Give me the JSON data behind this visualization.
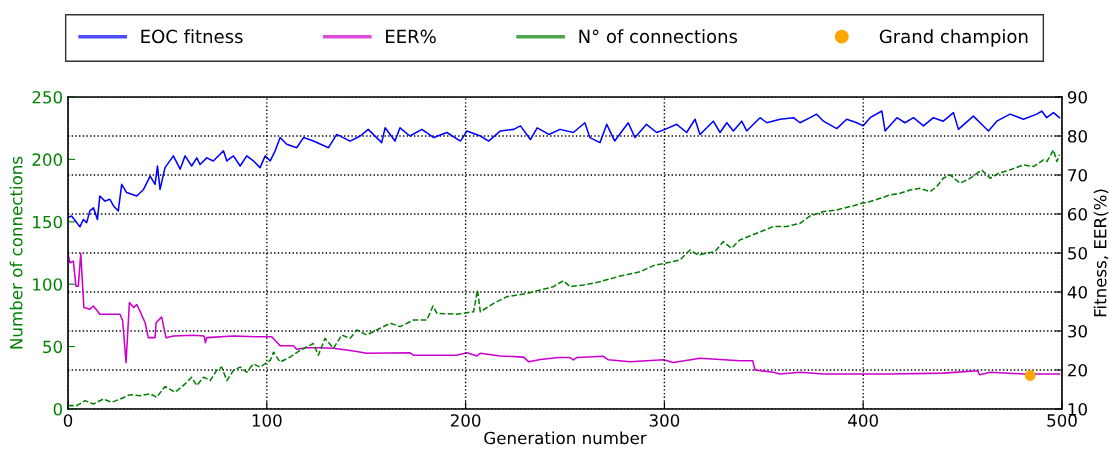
{
  "chart_data": {
    "type": "line",
    "xlabel": "Generation number",
    "ylabel": "Number of connections",
    "y2label": "Fitness, EER(%)",
    "xlim": [
      0,
      500
    ],
    "xticks": [
      0,
      100,
      200,
      300,
      400,
      500
    ],
    "ylim": [
      0,
      250
    ],
    "yticks": [
      0,
      50,
      100,
      150,
      200,
      250
    ],
    "y2lim": [
      10,
      90
    ],
    "y2ticks": [
      10,
      20,
      30,
      40,
      50,
      60,
      70,
      80,
      90
    ],
    "grid": true,
    "legend": "top",
    "series": [
      {
        "name": "EOC fitness",
        "axis": "y2",
        "color": "#0000ff",
        "line_style": "solid",
        "x": [
          0,
          1.8,
          3.5,
          6,
          7.7,
          9.4,
          11,
          12.8,
          14.8,
          16,
          18.6,
          21,
          23,
          25.3,
          27,
          29.5,
          34.6,
          38,
          41.3,
          43.8,
          45,
          46.3,
          48.8,
          53,
          56.4,
          58.9,
          62.2,
          64.8,
          66.4,
          69.8,
          73.1,
          78.2,
          79.9,
          83.2,
          86.6,
          89.9,
          93.3,
          96.6,
          99.2,
          101.7,
          104.2,
          106.7,
          110,
          115,
          118.5,
          123.5,
          131,
          135.2,
          141.9,
          147,
          151,
          157.8,
          159.5,
          164.5,
          167,
          172,
          178,
          184,
          190.6,
          197.4,
          200.7,
          207.4,
          211.6,
          217.5,
          224.2,
          227.6,
          232.6,
          236,
          241.9,
          247.5,
          254.2,
          260,
          262.5,
          267.6,
          271,
          275,
          281.8,
          285.2,
          291,
          296.1,
          300.3,
          306.2,
          311.2,
          315.4,
          317.9,
          324.6,
          328,
          331.4,
          334.7,
          338.9,
          341.4,
          348.1,
          351.5,
          358.2,
          364.9,
          368.2,
          373.3,
          376.6,
          380,
          386.7,
          391.7,
          396.8,
          400,
          403.5,
          409.4,
          411,
          417,
          421,
          425.3,
          430.3,
          435.3,
          440.3,
          445.4,
          447.9,
          455.4,
          458.8,
          463,
          467.2,
          473.9,
          480.6,
          487.3,
          489.8,
          492.3,
          495.7,
          498.7
        ],
        "values": [
          59.1,
          59.5,
          58.4,
          56.7,
          58.6,
          57.8,
          60.8,
          61.6,
          58.6,
          64.6,
          63.3,
          63.8,
          62,
          60.8,
          67.6,
          65.5,
          64.6,
          66.3,
          69.7,
          67.6,
          72.3,
          66.3,
          71.9,
          74.9,
          71.5,
          74.9,
          72.3,
          74.4,
          72.7,
          74.4,
          73.6,
          76.2,
          73.6,
          74.9,
          72.3,
          74.9,
          73.6,
          71.9,
          74.9,
          73.6,
          76.2,
          79.6,
          77.9,
          77,
          79.6,
          78.7,
          77,
          80.4,
          78.7,
          80,
          81.7,
          78.3,
          82.1,
          78.7,
          82.1,
          80,
          81.7,
          79.6,
          80.9,
          78.7,
          81.3,
          80,
          78.7,
          81.3,
          81.7,
          82.6,
          79.1,
          82.1,
          80.4,
          81.7,
          80.9,
          83.4,
          79.6,
          78.3,
          83,
          78.7,
          83.4,
          79.6,
          83,
          80.9,
          81.7,
          83,
          80.9,
          84.3,
          80.4,
          83.8,
          80.9,
          83.4,
          81.3,
          83.8,
          81.3,
          84.7,
          83.4,
          84.3,
          84.7,
          83.4,
          84.7,
          85.6,
          83.8,
          81.9,
          84.3,
          83.4,
          82.6,
          84.7,
          86.4,
          81.3,
          84.7,
          83.4,
          84.7,
          82.6,
          84.7,
          83.8,
          86,
          81.7,
          85.1,
          83.4,
          81.3,
          83.8,
          85.6,
          84.3,
          85.6,
          86.4,
          84.7,
          86,
          84.7
        ]
      },
      {
        "name": "EER%",
        "axis": "y2",
        "color": "#cc00cc",
        "line_style": "solid",
        "x": [
          0,
          1,
          2.7,
          4,
          5.2,
          6.4,
          8,
          11,
          12.8,
          16,
          26.2,
          27.5,
          29.2,
          30.9,
          33,
          34.6,
          36.2,
          38.8,
          40.4,
          43.8,
          44.3,
          47.1,
          49.3,
          53,
          63,
          68.5,
          69.1,
          69.8,
          83.2,
          96.6,
          102.5,
          106.7,
          113.4,
          115,
          120.1,
          126.8,
          133.5,
          143.6,
          150.3,
          172,
          173.8,
          195.5,
          200.7,
          205.7,
          207.4,
          217.5,
          229.2,
          231.8,
          237.6,
          247,
          252.5,
          254.2,
          255.9,
          269.3,
          271.8,
          282.7,
          299.5,
          304.5,
          318,
          338,
          344.4,
          345.6,
          354.8,
          358.2,
          368.3,
          380,
          396.8,
          413.5,
          440.3,
          457.6,
          458.5,
          463.9,
          480.6,
          498.7
        ],
        "values": [
          49.7,
          47.5,
          47.9,
          41.5,
          41.5,
          49.9,
          36,
          35.6,
          36.4,
          34.3,
          34.3,
          32.6,
          21.9,
          37.3,
          36,
          36.8,
          35.1,
          32.1,
          28.3,
          28.3,
          32.1,
          33.6,
          28.3,
          28.7,
          28.9,
          28.7,
          27,
          28.3,
          28.7,
          28.5,
          28.5,
          26.2,
          26.2,
          25.3,
          25.7,
          25.7,
          25.6,
          24.9,
          24.3,
          24.4,
          23.8,
          23.8,
          24.4,
          23.6,
          24.3,
          23.6,
          23.3,
          22.1,
          22.7,
          23.2,
          23.2,
          22.6,
          23.2,
          23.5,
          22.6,
          22.1,
          22.6,
          21.9,
          23,
          22.4,
          22.4,
          20,
          19.4,
          19,
          19.4,
          19,
          19,
          19,
          19.2,
          19.8,
          18.8,
          19.4,
          19,
          19
        ]
      },
      {
        "name": "N° of connections",
        "axis": "y",
        "color": "#008000",
        "line_style": "dashed",
        "x": [
          0,
          4.4,
          8.6,
          12.8,
          17.8,
          22,
          26.2,
          31.2,
          36.2,
          41.3,
          44.6,
          48.8,
          53.9,
          58.9,
          62.2,
          64.8,
          68.2,
          71.5,
          74.8,
          77.3,
          79.9,
          83.2,
          86.6,
          89.9,
          93.3,
          96.6,
          101.7,
          103.4,
          106.7,
          111.7,
          116.8,
          120.1,
          123.4,
          125.9,
          129.3,
          133.5,
          137.7,
          141.9,
          145.3,
          150.3,
          157,
          162.1,
          167.1,
          173.8,
          180.5,
          183.6,
          185.6,
          195.6,
          204,
          206,
          207.4,
          214.1,
          220.8,
          230.8,
          237.6,
          244.1,
          249.2,
          252.5,
          259.2,
          267.6,
          277.7,
          287.7,
          295.3,
          300.3,
          307.8,
          312.9,
          317,
          325.4,
          329.6,
          333.8,
          338,
          346.4,
          354.8,
          361.5,
          368.2,
          373.3,
          380,
          386.7,
          393.4,
          399.3,
          403.5,
          408.5,
          413.5,
          418.6,
          423.6,
          428.6,
          433.7,
          437,
          440.3,
          443.7,
          448.7,
          453.8,
          459.6,
          463.9,
          468.1,
          473.9,
          480.6,
          485.7,
          490.7,
          492.4,
          495.7,
          497.4,
          498.7
        ],
        "values": [
          2.7,
          2.7,
          6.7,
          4,
          8,
          5.4,
          8,
          11.5,
          10.7,
          12.1,
          9.4,
          18,
          13.4,
          20.1,
          25.5,
          18.8,
          25.5,
          22.8,
          30.9,
          33.6,
          22.8,
          30.9,
          33.6,
          29.5,
          36.2,
          33.6,
          38.9,
          45.6,
          37.6,
          41.6,
          47,
          49.7,
          52.5,
          43.1,
          56.6,
          48.6,
          59.3,
          56.6,
          63.3,
          59.3,
          64.7,
          68.7,
          66,
          71.3,
          71.3,
          82.5,
          76.6,
          76,
          77.9,
          95.3,
          77.9,
          84.6,
          90,
          92.6,
          95.3,
          98,
          102.8,
          98,
          99.3,
          102,
          106.5,
          110,
          115.4,
          116.7,
          119.4,
          127.4,
          123.4,
          126.1,
          134.1,
          128.8,
          135.5,
          140.8,
          146.2,
          146.2,
          148.8,
          154.7,
          158.2,
          159.5,
          162.2,
          164.8,
          166.2,
          168.8,
          171.5,
          172.8,
          175.5,
          176.8,
          174.2,
          178.2,
          184.9,
          187.6,
          180.9,
          184.9,
          191.6,
          184.9,
          188.9,
          191.6,
          195.6,
          194.3,
          199.6,
          198.3,
          207.6,
          198.3,
          203.7
        ]
      },
      {
        "name": "Grand champion",
        "type": "scatter",
        "axis": "y2",
        "color": "#ffa500",
        "marker": "circle",
        "x": [
          484
        ],
        "values": [
          18.6
        ]
      }
    ]
  }
}
